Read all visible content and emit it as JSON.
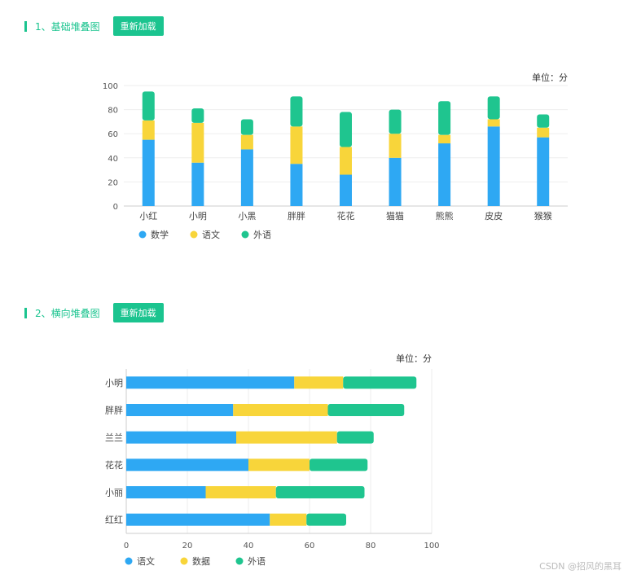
{
  "sections": [
    {
      "title": "1、基础堆叠图",
      "reload_label": "重新加载"
    },
    {
      "title": "2、横向堆叠图",
      "reload_label": "重新加载"
    }
  ],
  "watermark": "CSDN @招风的黑耳",
  "colors": {
    "accent": "#1bc48f",
    "blue": "#2ea8f3",
    "yellow": "#f8d53a",
    "green": "#1fc58f"
  },
  "chart_data": [
    {
      "type": "bar",
      "orientation": "vertical",
      "stacked": true,
      "unit_label": "单位：分",
      "categories": [
        "小红",
        "小明",
        "小黑",
        "胖胖",
        "花花",
        "猫猫",
        "熊熊",
        "皮皮",
        "猴猴"
      ],
      "series": [
        {
          "name": "数学",
          "values": [
            55,
            36,
            47,
            35,
            26,
            40,
            52,
            66,
            57
          ]
        },
        {
          "name": "语文",
          "values": [
            16,
            33,
            12,
            31,
            23,
            20,
            7,
            6,
            8
          ]
        },
        {
          "name": "外语",
          "values": [
            24,
            12,
            13,
            25,
            29,
            20,
            28,
            19,
            11
          ]
        }
      ],
      "ylim": [
        0,
        100
      ],
      "yticks": [
        0,
        20,
        40,
        60,
        80,
        100
      ],
      "grid": true,
      "legend_position": "bottom-left"
    },
    {
      "type": "bar",
      "orientation": "horizontal",
      "stacked": true,
      "unit_label": "单位：分",
      "categories": [
        "小明",
        "胖胖",
        "兰兰",
        "花花",
        "小丽",
        "红红"
      ],
      "series": [
        {
          "name": "语文",
          "values": [
            55,
            35,
            36,
            40,
            26,
            47
          ]
        },
        {
          "name": "数据",
          "values": [
            16,
            31,
            33,
            20,
            23,
            12
          ]
        },
        {
          "name": "外语",
          "values": [
            24,
            25,
            12,
            19,
            29,
            13
          ]
        }
      ],
      "xlim": [
        0,
        100
      ],
      "xticks": [
        0,
        20,
        40,
        60,
        80,
        100
      ],
      "grid": true,
      "legend_position": "bottom-left"
    }
  ]
}
